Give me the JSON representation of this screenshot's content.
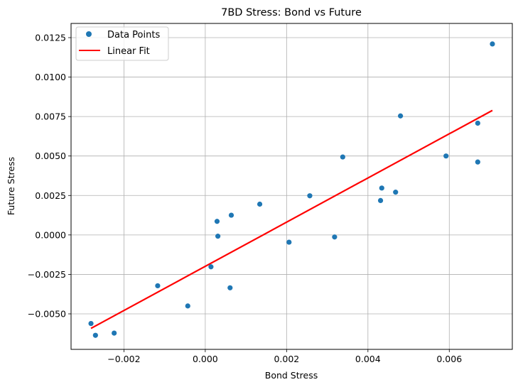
{
  "chart_data": {
    "type": "scatter",
    "title": "7BD Stress: Bond vs Future",
    "xlabel": "Bond Stress",
    "ylabel": "Future Stress",
    "xlim": [
      -0.0033,
      0.00755
    ],
    "ylim": [
      -0.00725,
      0.0134
    ],
    "grid": true,
    "legend_position": "top-left",
    "x_ticks": [
      {
        "value": -0.002,
        "label": "−0.002"
      },
      {
        "value": 0.0,
        "label": "0.000"
      },
      {
        "value": 0.002,
        "label": "0.002"
      },
      {
        "value": 0.004,
        "label": "0.004"
      },
      {
        "value": 0.006,
        "label": "0.006"
      }
    ],
    "y_ticks": [
      {
        "value": -0.005,
        "label": "−0.0050"
      },
      {
        "value": -0.0025,
        "label": "−0.0025"
      },
      {
        "value": 0.0,
        "label": "0.0000"
      },
      {
        "value": 0.0025,
        "label": "0.0025"
      },
      {
        "value": 0.005,
        "label": "0.0050"
      },
      {
        "value": 0.0075,
        "label": "0.0075"
      },
      {
        "value": 0.01,
        "label": "0.0100"
      },
      {
        "value": 0.0125,
        "label": "0.0125"
      }
    ],
    "series": [
      {
        "name": "Data Points",
        "kind": "scatter",
        "color": "#1f77b4",
        "points": [
          {
            "x": -0.00281,
            "y": -0.00561
          },
          {
            "x": -0.0027,
            "y": -0.00636
          },
          {
            "x": -0.00224,
            "y": -0.00622
          },
          {
            "x": -0.00117,
            "y": -0.00322
          },
          {
            "x": -0.00043,
            "y": -0.0045
          },
          {
            "x": 0.00014,
            "y": -0.00202
          },
          {
            "x": 0.00029,
            "y": 0.00086
          },
          {
            "x": 0.00031,
            "y": -8e-05
          },
          {
            "x": 0.00061,
            "y": -0.00335
          },
          {
            "x": 0.00064,
            "y": 0.00125
          },
          {
            "x": 0.00134,
            "y": 0.00195
          },
          {
            "x": 0.00206,
            "y": -0.00046
          },
          {
            "x": 0.00257,
            "y": 0.00248
          },
          {
            "x": 0.00318,
            "y": -0.00013
          },
          {
            "x": 0.00338,
            "y": 0.00494
          },
          {
            "x": 0.00431,
            "y": 0.00218
          },
          {
            "x": 0.00434,
            "y": 0.00297
          },
          {
            "x": 0.00468,
            "y": 0.00271
          },
          {
            "x": 0.0048,
            "y": 0.00754
          },
          {
            "x": 0.00592,
            "y": 0.005
          },
          {
            "x": 0.0067,
            "y": 0.00708
          },
          {
            "x": 0.0067,
            "y": 0.00462
          },
          {
            "x": 0.00706,
            "y": 0.0121
          }
        ]
      },
      {
        "name": "Linear Fit",
        "kind": "line",
        "color": "#ff0000",
        "points": [
          {
            "x": -0.00281,
            "y": -0.00592
          },
          {
            "x": 0.00706,
            "y": 0.00789
          }
        ]
      }
    ]
  }
}
